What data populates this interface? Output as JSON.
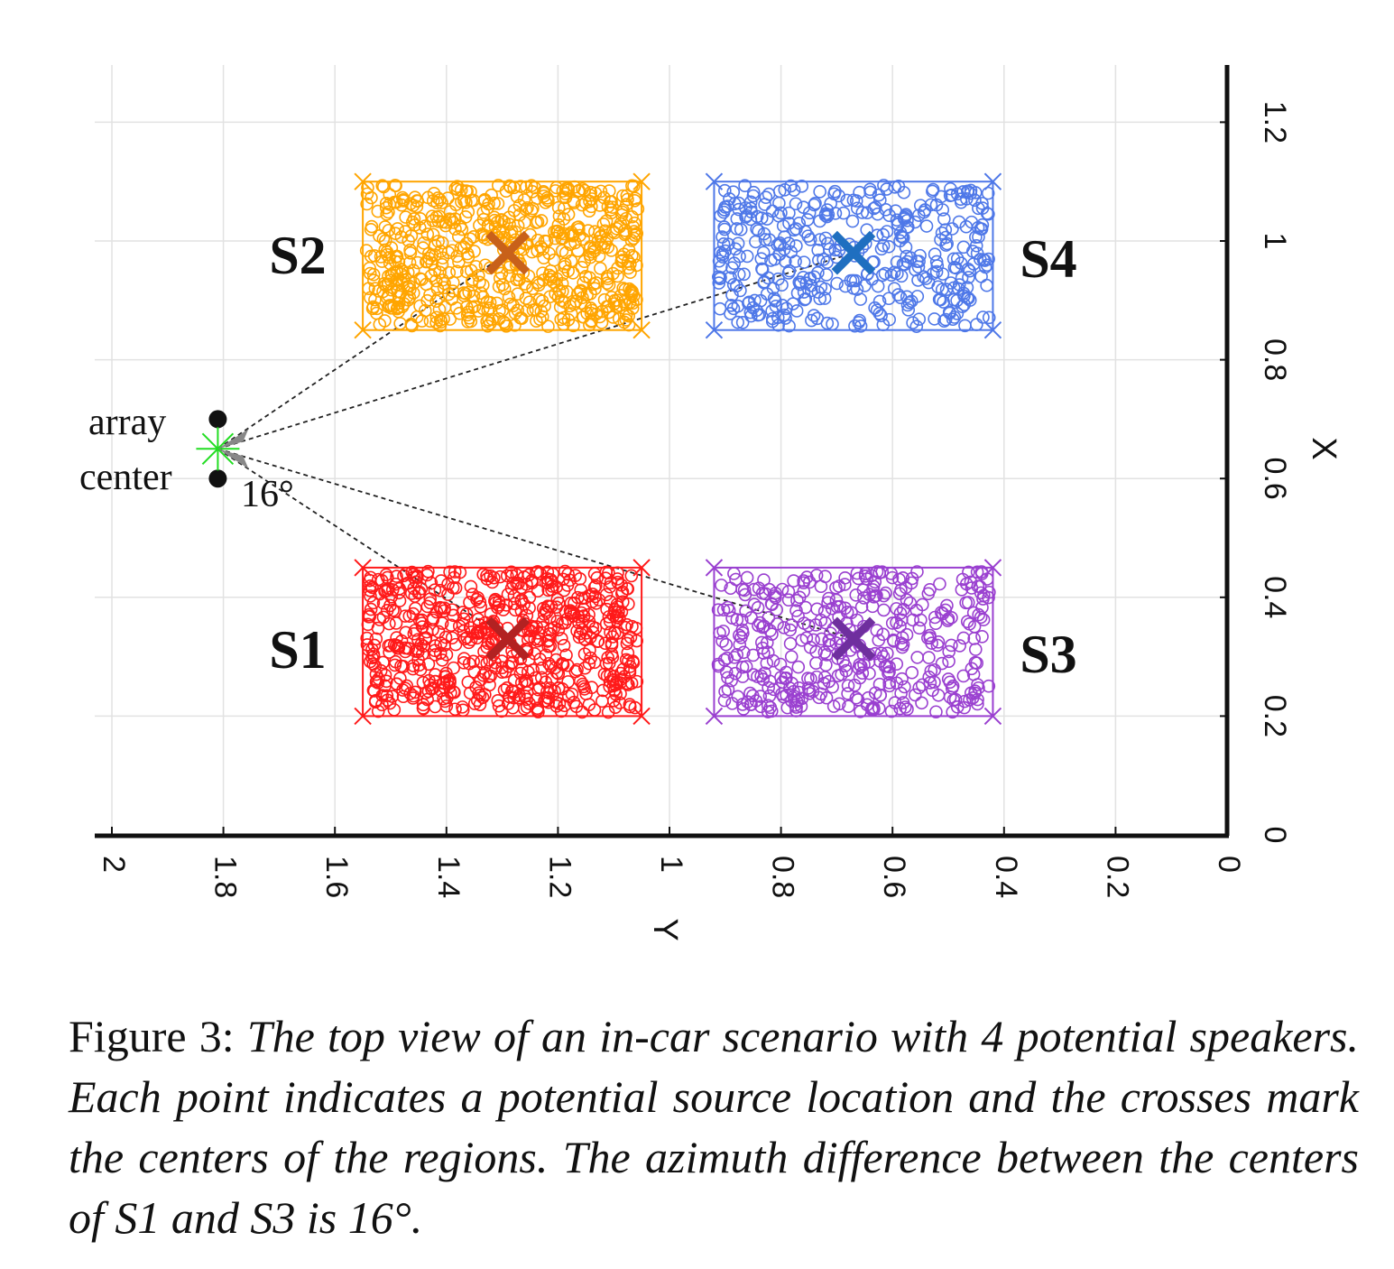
{
  "chart_data": {
    "type": "scatter",
    "xlabel": "Y",
    "ylabel": "X",
    "x_axis_direction": "reversed",
    "xlim": [
      2.05,
      0
    ],
    "ylim": [
      0,
      1.3
    ],
    "x_ticks": [
      "2",
      "1.8",
      "1.6",
      "1.4",
      "1.2",
      "1",
      "0.8",
      "0.6",
      "0.4",
      "0.2",
      "0"
    ],
    "y_ticks": [
      "0",
      "0.2",
      "0.4",
      "0.6",
      "0.8",
      "1",
      "1.2"
    ],
    "grid": true,
    "regions": [
      {
        "label": "S1",
        "color": "#ff1a1a",
        "center_color": "#b22222",
        "y_range": [
          1.05,
          1.55
        ],
        "x_range": [
          0.2,
          0.45
        ],
        "center": [
          1.29,
          0.33
        ],
        "points_shown": "many"
      },
      {
        "label": "S2",
        "color": "#ffa500",
        "center_color": "#c8611a",
        "y_range": [
          1.05,
          1.55
        ],
        "x_range": [
          0.85,
          1.1
        ],
        "center": [
          1.29,
          0.98
        ],
        "points_shown": "many"
      },
      {
        "label": "S3",
        "color": "#9a40d0",
        "center_color": "#6f2f9e",
        "y_range": [
          0.42,
          0.92
        ],
        "x_range": [
          0.2,
          0.45
        ],
        "center": [
          0.67,
          0.33
        ],
        "points_shown": "many"
      },
      {
        "label": "S4",
        "color": "#4f78e8",
        "center_color": "#1f6fc0",
        "y_range": [
          0.42,
          0.92
        ],
        "x_range": [
          0.85,
          1.1
        ],
        "center": [
          0.67,
          0.98
        ],
        "points_shown": "many"
      }
    ],
    "array": {
      "center": [
        1.81,
        0.65
      ],
      "mics": [
        [
          1.81,
          0.7
        ],
        [
          1.81,
          0.6
        ]
      ],
      "center_color": "#22dd22",
      "label_line1": "array",
      "label_line2": "center",
      "angle_label": "16°"
    }
  },
  "caption": {
    "prefix": "Figure 3: ",
    "text": "The top view of an in-car scenario with 4 potential speakers. Each point indicates a potential source location and the crosses mark the centers of the regions. The azimuth difference between the centers of S1 and S3 is 16°."
  }
}
